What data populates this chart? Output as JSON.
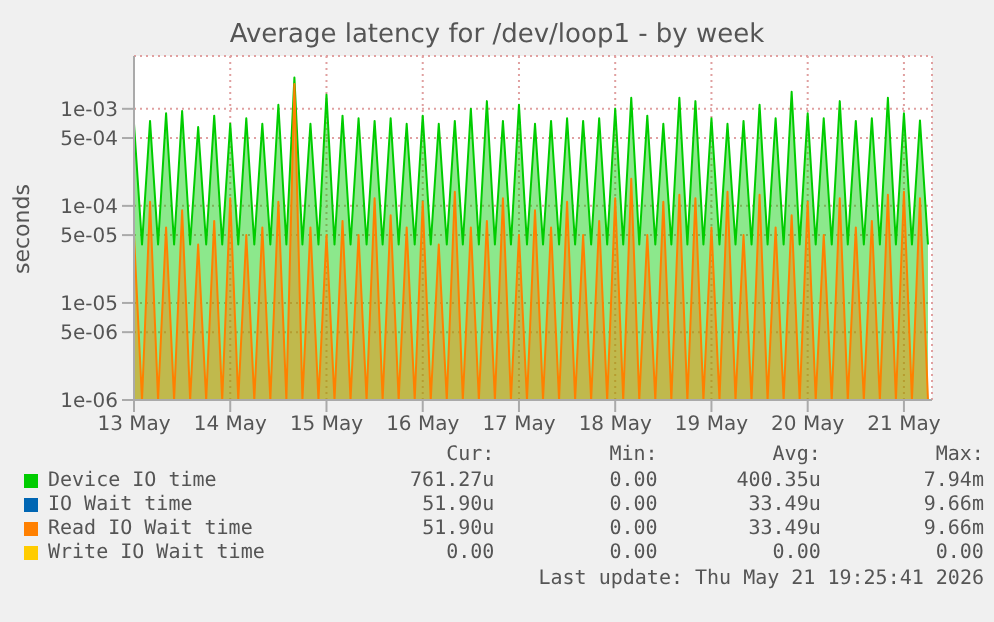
{
  "chart_data": {
    "type": "area",
    "title": "Average latency for /dev/loop1 - by week",
    "ylabel": "seconds",
    "x": [
      "2026-05-13T00:00",
      "2026-05-13T02:00",
      "2026-05-13T04:00",
      "2026-05-13T06:00",
      "2026-05-13T08:00",
      "2026-05-13T10:00",
      "2026-05-13T12:00",
      "2026-05-13T14:00",
      "2026-05-13T16:00",
      "2026-05-13T18:00",
      "2026-05-13T20:00",
      "2026-05-13T22:00",
      "2026-05-14T00:00",
      "2026-05-14T02:00",
      "2026-05-14T04:00",
      "2026-05-14T06:00",
      "2026-05-14T08:00",
      "2026-05-14T10:00",
      "2026-05-14T12:00",
      "2026-05-14T14:00",
      "2026-05-14T16:00",
      "2026-05-14T18:00",
      "2026-05-14T20:00",
      "2026-05-14T22:00",
      "2026-05-15T00:00",
      "2026-05-15T02:00",
      "2026-05-15T04:00",
      "2026-05-15T06:00",
      "2026-05-15T08:00",
      "2026-05-15T10:00",
      "2026-05-15T12:00",
      "2026-05-15T14:00",
      "2026-05-15T16:00",
      "2026-05-15T18:00",
      "2026-05-15T20:00",
      "2026-05-15T22:00",
      "2026-05-16T00:00",
      "2026-05-16T02:00",
      "2026-05-16T04:00",
      "2026-05-16T06:00",
      "2026-05-16T08:00",
      "2026-05-16T10:00",
      "2026-05-16T12:00",
      "2026-05-16T14:00",
      "2026-05-16T16:00",
      "2026-05-16T18:00",
      "2026-05-16T20:00",
      "2026-05-16T22:00",
      "2026-05-17T00:00",
      "2026-05-17T02:00",
      "2026-05-17T04:00",
      "2026-05-17T06:00",
      "2026-05-17T08:00",
      "2026-05-17T10:00",
      "2026-05-17T12:00",
      "2026-05-17T14:00",
      "2026-05-17T16:00",
      "2026-05-17T18:00",
      "2026-05-17T20:00",
      "2026-05-17T22:00",
      "2026-05-18T00:00",
      "2026-05-18T02:00",
      "2026-05-18T04:00",
      "2026-05-18T06:00",
      "2026-05-18T08:00",
      "2026-05-18T10:00",
      "2026-05-18T12:00",
      "2026-05-18T14:00",
      "2026-05-18T16:00",
      "2026-05-18T18:00",
      "2026-05-18T20:00",
      "2026-05-18T22:00",
      "2026-05-19T00:00",
      "2026-05-19T02:00",
      "2026-05-19T04:00",
      "2026-05-19T06:00",
      "2026-05-19T08:00",
      "2026-05-19T10:00",
      "2026-05-19T12:00",
      "2026-05-19T14:00",
      "2026-05-19T16:00",
      "2026-05-19T18:00",
      "2026-05-19T20:00",
      "2026-05-19T22:00",
      "2026-05-20T00:00",
      "2026-05-20T02:00",
      "2026-05-20T04:00",
      "2026-05-20T06:00",
      "2026-05-20T08:00",
      "2026-05-20T10:00",
      "2026-05-20T12:00",
      "2026-05-20T14:00",
      "2026-05-20T16:00",
      "2026-05-20T18:00",
      "2026-05-20T20:00",
      "2026-05-20T22:00",
      "2026-05-21T00:00",
      "2026-05-21T02:00",
      "2026-05-21T04:00",
      "2026-05-21T06:00"
    ],
    "xlim": [
      "2026-05-13T00:00",
      "2026-05-21T07:00"
    ],
    "xticks": [
      {
        "value": "2026-05-13",
        "label": "13 May"
      },
      {
        "value": "2026-05-14",
        "label": "14 May"
      },
      {
        "value": "2026-05-15",
        "label": "15 May"
      },
      {
        "value": "2026-05-16",
        "label": "16 May"
      },
      {
        "value": "2026-05-17",
        "label": "17 May"
      },
      {
        "value": "2026-05-18",
        "label": "18 May"
      },
      {
        "value": "2026-05-19",
        "label": "19 May"
      },
      {
        "value": "2026-05-20",
        "label": "20 May"
      },
      {
        "value": "2026-05-21",
        "label": "21 May"
      }
    ],
    "log": true,
    "ylim": [
      1e-06,
      0.0035
    ],
    "yticks": [
      {
        "value": 1e-06,
        "label": "1e-06"
      },
      {
        "value": 5e-06,
        "label": "5e-06"
      },
      {
        "value": 1e-05,
        "label": "1e-05"
      },
      {
        "value": 5e-05,
        "label": "5e-05"
      },
      {
        "value": 0.0001,
        "label": "1e-04"
      },
      {
        "value": 0.0005,
        "label": "5e-04"
      },
      {
        "value": 0.001,
        "label": "1e-03"
      }
    ],
    "grid": true,
    "legend": "bottom",
    "series": [
      {
        "name": "Device IO time",
        "color": "#00cc00",
        "values": [
          0.0007,
          4e-05,
          0.00075,
          4e-05,
          0.0009,
          4e-05,
          0.00095,
          4e-05,
          0.00065,
          4e-05,
          0.00085,
          4e-05,
          0.0007,
          4e-05,
          0.0008,
          4e-05,
          0.0007,
          4e-05,
          0.0011,
          4e-05,
          0.0021,
          4e-05,
          0.0007,
          4e-05,
          0.0014,
          4e-05,
          0.00085,
          4e-05,
          0.0008,
          4e-05,
          0.00075,
          4e-05,
          0.0008,
          4e-05,
          0.0007,
          4e-05,
          0.00085,
          4e-05,
          0.0007,
          4e-05,
          0.00075,
          4e-05,
          0.001,
          4e-05,
          0.0012,
          4e-05,
          0.00075,
          4e-05,
          0.0011,
          4e-05,
          0.0007,
          4e-05,
          0.00075,
          4e-05,
          0.0008,
          4e-05,
          0.00075,
          4e-05,
          0.0008,
          4e-05,
          0.001,
          4e-05,
          0.0013,
          4e-05,
          0.00085,
          4e-05,
          0.0007,
          4e-05,
          0.0013,
          4e-05,
          0.0012,
          4e-05,
          0.0008,
          4e-05,
          0.0007,
          4e-05,
          0.00075,
          4e-05,
          0.0011,
          4e-05,
          0.0008,
          4e-05,
          0.0015,
          4e-05,
          0.0009,
          4e-05,
          0.0008,
          4e-05,
          0.0012,
          4e-05,
          0.00075,
          4e-05,
          0.0008,
          4e-05,
          0.0013,
          4e-05,
          0.0009,
          4e-05,
          0.00076,
          4e-05
        ]
      },
      {
        "name": "IO Wait time",
        "color": "#0066b3",
        "values": [
          null,
          null,
          null,
          null,
          null,
          null,
          null,
          null,
          null,
          null,
          null,
          null,
          null,
          null,
          null,
          null,
          null,
          null,
          null,
          null,
          null,
          null,
          null,
          null,
          null,
          null,
          null,
          null,
          null,
          null,
          null,
          null,
          null,
          null,
          null,
          null,
          null,
          null,
          null,
          null,
          null,
          null,
          null,
          null,
          null,
          null,
          null,
          null,
          null,
          null,
          null,
          null,
          null,
          null,
          null,
          null,
          null,
          null,
          null,
          null,
          null,
          null,
          null,
          null,
          null,
          null,
          null,
          null,
          null,
          null,
          null,
          null,
          null,
          null,
          null,
          null,
          null,
          null,
          null,
          null,
          null,
          null,
          null,
          null,
          null,
          null,
          null,
          null,
          null,
          null,
          null,
          null,
          null,
          null,
          null,
          null,
          null,
          null,
          null,
          null
        ]
      },
      {
        "name": "Read IO Wait time",
        "color": "#ff8000",
        "values": [
          5e-05,
          1e-06,
          0.00011,
          1e-06,
          6e-05,
          1e-06,
          9e-05,
          1e-06,
          4e-05,
          1e-06,
          7e-05,
          1e-06,
          0.00012,
          1e-06,
          5e-05,
          1e-06,
          6e-05,
          1e-06,
          0.00011,
          1e-06,
          0.0018,
          1e-06,
          6e-05,
          1e-06,
          5e-05,
          1e-06,
          7e-05,
          1e-06,
          5e-05,
          1e-06,
          0.00012,
          1e-06,
          8e-05,
          1e-06,
          6e-05,
          1e-06,
          0.00011,
          1e-06,
          4e-05,
          1e-06,
          0.00014,
          1e-06,
          6e-05,
          1e-06,
          7e-05,
          1e-06,
          0.00012,
          1e-06,
          5e-05,
          1e-06,
          9e-05,
          1e-06,
          6e-05,
          1e-06,
          0.00011,
          1e-06,
          5e-05,
          1e-06,
          7e-05,
          1e-06,
          0.00012,
          1e-06,
          0.00019,
          1e-06,
          5e-05,
          1e-06,
          0.00011,
          1e-06,
          0.00013,
          1e-06,
          0.00012,
          1e-06,
          6e-05,
          1e-06,
          0.00014,
          1e-06,
          5e-05,
          1e-06,
          0.00013,
          1e-06,
          6e-05,
          1e-06,
          8e-05,
          1e-06,
          0.00011,
          1e-06,
          5e-05,
          1e-06,
          0.00012,
          1e-06,
          6e-05,
          1e-06,
          7e-05,
          1e-06,
          0.00013,
          1e-06,
          0.00014,
          1e-06,
          0.00012,
          1e-06
        ]
      },
      {
        "name": "Write IO Wait time",
        "color": "#ffcc00",
        "values": [
          null,
          null,
          null,
          null,
          null,
          null,
          null,
          null,
          null,
          null,
          null,
          null,
          null,
          null,
          null,
          null,
          null,
          null,
          null,
          null,
          null,
          null,
          null,
          null,
          null,
          null,
          null,
          null,
          null,
          null,
          null,
          null,
          null,
          null,
          null,
          null,
          null,
          null,
          null,
          null,
          null,
          null,
          null,
          null,
          null,
          null,
          null,
          null,
          null,
          null,
          null,
          null,
          null,
          null,
          null,
          null,
          null,
          null,
          null,
          null,
          null,
          null,
          null,
          null,
          null,
          null,
          null,
          null,
          null,
          null,
          null,
          null,
          null,
          null,
          null,
          null,
          null,
          null,
          null,
          null,
          null,
          null,
          null,
          null,
          null,
          null,
          null,
          null,
          null,
          null,
          null,
          null,
          null,
          null,
          null,
          null,
          null,
          null,
          null,
          null
        ]
      }
    ],
    "annotations": [
      "Cur:",
      "Min:",
      "Avg:",
      "Max:",
      "761.27u",
      "0.00",
      "400.35u",
      "7.94m",
      "51.90u",
      "0.00",
      "33.49u",
      "9.66m",
      "51.90u",
      "0.00",
      "33.49u",
      "9.66m",
      "0.00",
      "0.00",
      "0.00",
      "0.00",
      "Last update: Thu May 21 19:25:41 2026"
    ]
  }
}
